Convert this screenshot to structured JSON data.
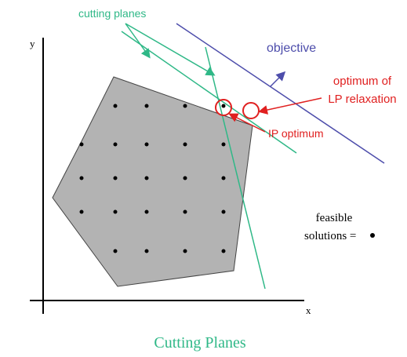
{
  "labels": {
    "cutting_planes": "cutting planes",
    "objective": "objective",
    "lp_optimum": [
      "optimum of",
      "LP relaxation"
    ],
    "ip_optimum": "IP optimum",
    "feasible": [
      "feasible",
      "solutions ="
    ],
    "y_axis": "y",
    "x_axis": "x"
  },
  "caption": "Cutting Planes"
}
